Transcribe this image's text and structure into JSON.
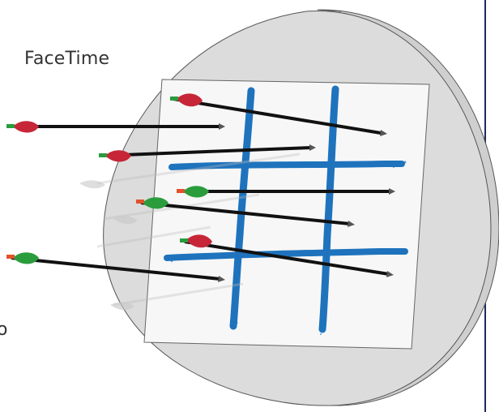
{
  "texts": {
    "facetime": "FaceTime",
    "partial": "o"
  },
  "colors": {
    "accent_border": "#1f2a5c",
    "target_board": "#f7f7f7",
    "grid_paint": "#1f73bd",
    "arrow_shaft": "#111111",
    "fletch_red": "#c62638",
    "fletch_green": "#2a9c3c",
    "nock_orange": "#e0522b",
    "nock_green": "#2a9c3c"
  },
  "board": {
    "grid": "tic-tac-toe"
  },
  "arrows": [
    {
      "name": "arrow-1",
      "fletch": "red",
      "nock": "green",
      "ghost": false
    },
    {
      "name": "arrow-2",
      "fletch": "red",
      "nock": "green",
      "ghost": true
    },
    {
      "name": "arrow-3",
      "fletch": "red",
      "nock": "green",
      "ghost": true
    },
    {
      "name": "arrow-4",
      "fletch": "green",
      "nock": "orange",
      "ghost": false
    },
    {
      "name": "arrow-5",
      "fletch": "green",
      "nock": "orange",
      "ghost": true
    },
    {
      "name": "arrow-6",
      "fletch": "red",
      "nock": "green",
      "ghost": true
    },
    {
      "name": "arrow-7",
      "fletch": "green",
      "nock": "orange",
      "ghost": true
    }
  ]
}
